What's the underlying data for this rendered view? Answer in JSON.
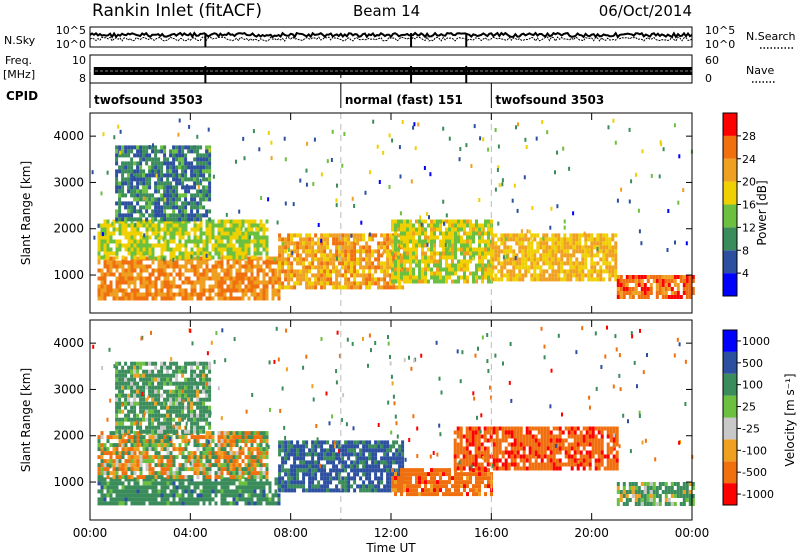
{
  "header": {
    "station": "Rankin Inlet (fitACF)",
    "beam": "Beam 14",
    "date": "06/Oct/2014"
  },
  "strip_labels": {
    "nsky": "N.Sky",
    "nsearch": "N.Search",
    "freq": "Freq.",
    "freq_unit": "[MHz]",
    "nave": "Nave",
    "cpid": "CPID",
    "ticks_noise_left": [
      "10^5",
      "10^0"
    ],
    "ticks_noise_right": [
      "10^5",
      "10^0"
    ],
    "ticks_freq_left": [
      "10",
      "8"
    ],
    "ticks_nave_right": [
      "60",
      "0"
    ]
  },
  "cpid_segments": [
    {
      "label": "twofsound 3503",
      "start_h": 0,
      "end_h": 10
    },
    {
      "label": "normal (fast) 151",
      "start_h": 10,
      "end_h": 16
    },
    {
      "label": "twofsound 3503",
      "start_h": 16,
      "end_h": 24
    }
  ],
  "x_axis": {
    "label": "Time UT",
    "ticks": [
      "00:00",
      "04:00",
      "08:00",
      "12:00",
      "16:00",
      "20:00",
      "00:00"
    ],
    "range_h": [
      0,
      24
    ]
  },
  "power_panel": {
    "ylabel": "Slant Range [km]",
    "yticks": [
      "1000",
      "2000",
      "3000",
      "4000"
    ],
    "colorbar_label": "Power [dB]",
    "colorbar_ticks": [
      "4",
      "8",
      "12",
      "16",
      "20",
      "24",
      "28"
    ]
  },
  "velocity_panel": {
    "ylabel": "Slant Range [km]",
    "yticks": [
      "1000",
      "2000",
      "3000",
      "4000"
    ],
    "colorbar_label": "Velocity [m s⁻¹]",
    "colorbar_ticks": [
      "1000",
      "500",
      "100",
      "25",
      "-25",
      "-100",
      "-500",
      "-1000"
    ]
  },
  "chart_data": {
    "type": "heatmap",
    "title": "Rankin Inlet (fitACF)",
    "xlabel": "Time UT",
    "ylabel": "Slant Range [km]",
    "xlim_hours": [
      0,
      24
    ],
    "ylim_km": [
      180,
      4500
    ],
    "mode_boundaries_h": [
      10,
      16
    ],
    "power_colors": [
      "#0000ff",
      "#2c4fa0",
      "#3a8c5a",
      "#6cc040",
      "#f0d000",
      "#f0a020",
      "#f07010",
      "#ff0000"
    ],
    "velocity_colors": [
      "#0000ff",
      "#2c4fa0",
      "#3a8c5a",
      "#6cc040",
      "#c8c8c8",
      "#f0a020",
      "#f07010",
      "#ff0000"
    ],
    "power_bands": [
      {
        "start_h": 0.3,
        "end_h": 7.5,
        "range_km": [
          500,
          1400
        ],
        "db": 26
      },
      {
        "start_h": 0.3,
        "end_h": 7.0,
        "range_km": [
          1400,
          2200
        ],
        "db": 18
      },
      {
        "start_h": 1.0,
        "end_h": 4.8,
        "range_km": [
          2200,
          3800
        ],
        "db": 11
      },
      {
        "start_h": 7.5,
        "end_h": 12.5,
        "range_km": [
          700,
          1900
        ],
        "db": 24
      },
      {
        "start_h": 12.0,
        "end_h": 16.0,
        "range_km": [
          900,
          2200
        ],
        "db": 19
      },
      {
        "start_h": 16.0,
        "end_h": 21.0,
        "range_km": [
          900,
          1900
        ],
        "db": 22
      },
      {
        "start_h": 21.0,
        "end_h": 24.0,
        "range_km": [
          500,
          1000
        ],
        "db": 28
      }
    ],
    "velocity_bands": [
      {
        "start_h": 0.3,
        "end_h": 7.5,
        "range_km": [
          500,
          1100
        ],
        "v": 300
      },
      {
        "start_h": 0.3,
        "end_h": 7.0,
        "range_km": [
          1100,
          2100
        ],
        "v": 0
      },
      {
        "start_h": 1.0,
        "end_h": 4.8,
        "range_km": [
          2100,
          3600
        ],
        "v": 200
      },
      {
        "start_h": 7.5,
        "end_h": 12.5,
        "range_km": [
          800,
          1900
        ],
        "v": 600
      },
      {
        "start_h": 12.0,
        "end_h": 16.0,
        "range_km": [
          700,
          1300
        ],
        "v": -300
      },
      {
        "start_h": 14.5,
        "end_h": 21.0,
        "range_km": [
          1300,
          2200
        ],
        "v": -400
      },
      {
        "start_h": 21.0,
        "end_h": 24.0,
        "range_km": [
          500,
          1000
        ],
        "v": 150
      }
    ]
  }
}
